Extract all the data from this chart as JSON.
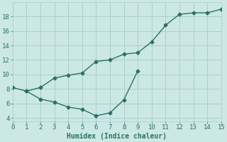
{
  "line1_x": [
    0,
    1,
    2,
    3,
    4,
    5,
    6,
    7,
    8,
    9,
    10,
    11,
    12,
    13,
    14,
    15
  ],
  "line1_y": [
    8.2,
    7.7,
    8.2,
    9.5,
    9.9,
    10.2,
    11.8,
    12.0,
    12.8,
    13.0,
    14.5,
    16.8,
    18.3,
    18.5,
    18.5,
    19.0
  ],
  "line2_x": [
    1,
    2,
    3,
    4,
    5,
    6,
    7,
    8,
    9
  ],
  "line2_y": [
    7.7,
    6.6,
    6.2,
    5.5,
    5.2,
    4.3,
    4.7,
    6.5,
    10.5
  ],
  "line_color": "#2a7068",
  "bg_color": "#cce8e4",
  "grid_color": "#aacfcb",
  "xlabel": "Humidex (Indice chaleur)",
  "xlim": [
    0,
    15
  ],
  "ylim": [
    3.5,
    20
  ],
  "xticks": [
    0,
    1,
    2,
    3,
    4,
    5,
    6,
    7,
    8,
    9,
    10,
    11,
    12,
    13,
    14,
    15
  ],
  "yticks": [
    4,
    6,
    8,
    10,
    12,
    14,
    16,
    18
  ],
  "marker": "D",
  "markersize": 2.5,
  "linewidth": 1.0,
  "xlabel_fontsize": 7,
  "tick_fontsize": 6.5
}
